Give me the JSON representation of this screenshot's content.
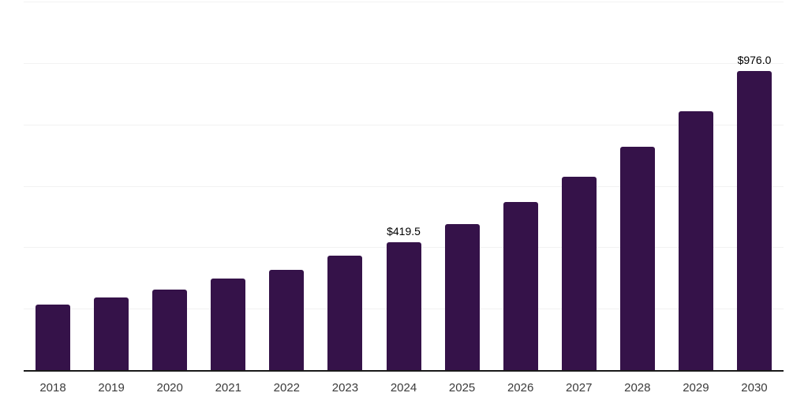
{
  "chart_data": {
    "type": "bar",
    "categories": [
      "2018",
      "2019",
      "2020",
      "2021",
      "2022",
      "2023",
      "2024",
      "2025",
      "2026",
      "2027",
      "2028",
      "2029",
      "2030"
    ],
    "values": [
      216,
      240,
      266,
      300,
      330,
      375,
      419.5,
      478,
      551,
      632,
      731,
      846,
      976
    ],
    "ylim": [
      0,
      1200
    ],
    "gridlines_y": [
      200,
      400,
      600,
      800,
      1000,
      1200
    ],
    "grid": "horizontal-only",
    "legend_position": "none",
    "y_axis_tick_labels_visible": false,
    "annotations": [
      {
        "category": "2024",
        "label": "$419.5"
      },
      {
        "category": "2030",
        "label": "$976.0"
      }
    ]
  },
  "style": {
    "background_color": "#ffffff",
    "bar_color": "#351249",
    "axis_line_color": "#1a1a1a",
    "gridline_color": "#f2f2f2",
    "data_label_color": "#000000",
    "tick_label_color": "#3b3b3b"
  }
}
